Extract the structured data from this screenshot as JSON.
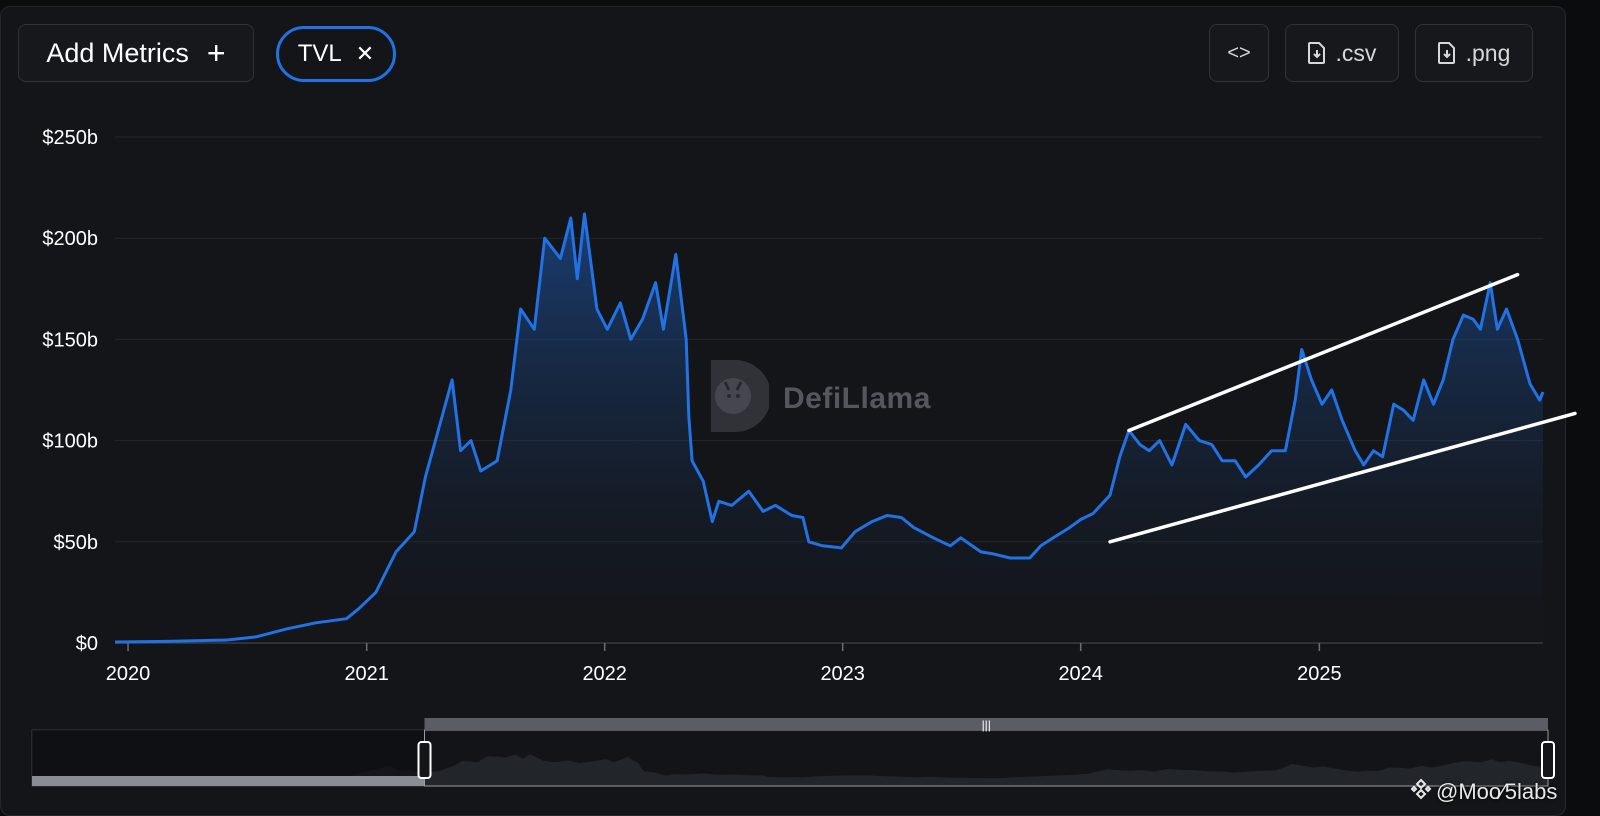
{
  "toolbar": {
    "add_metrics_label": "Add Metrics",
    "add_icon": "plus-icon",
    "metric_chip_label": "TVL",
    "remove_icon": "close-icon",
    "embed_label": "<>",
    "csv_label": ".csv",
    "png_label": ".png",
    "download_icon": "file-download-icon"
  },
  "watermark": {
    "text": "DefiLlama",
    "icon": "llama-logo-icon"
  },
  "credit": {
    "text": "@Moo⁄5labs",
    "icon": "binance-logo-icon"
  },
  "colors": {
    "line": "#2172e5",
    "background": "#141518",
    "trend_lines": "#ffffff",
    "brush_handle": "#ffffff"
  },
  "chart_data": {
    "type": "area",
    "title": "",
    "xlabel": "",
    "ylabel": "",
    "y_ticks": [
      "$0",
      "$50b",
      "$100b",
      "$150b",
      "$200b",
      "$250b"
    ],
    "x_ticks": [
      "2020",
      "2021",
      "2022",
      "2023",
      "2024",
      "2025"
    ],
    "ylim": [
      0,
      250
    ],
    "y_unit": "billion USD",
    "x_range": [
      "2019-12-12",
      "2025-12-10"
    ],
    "grid": "horizontal",
    "legend": "none",
    "series": [
      {
        "name": "TVL",
        "x": [
          "2019-12-12",
          "2020-03-01",
          "2020-06-01",
          "2020-07-15",
          "2020-09-01",
          "2020-10-15",
          "2020-12-01",
          "2020-12-20",
          "2021-01-15",
          "2021-02-15",
          "2021-03-15",
          "2021-04-01",
          "2021-04-25",
          "2021-05-12",
          "2021-05-25",
          "2021-06-10",
          "2021-06-25",
          "2021-07-20",
          "2021-08-10",
          "2021-08-25",
          "2021-09-15",
          "2021-10-01",
          "2021-10-25",
          "2021-11-10",
          "2021-11-20",
          "2021-12-01",
          "2021-12-20",
          "2022-01-05",
          "2022-01-25",
          "2022-02-10",
          "2022-02-28",
          "2022-03-20",
          "2022-04-01",
          "2022-04-20",
          "2022-05-06",
          "2022-05-10",
          "2022-05-15",
          "2022-06-01",
          "2022-06-15",
          "2022-06-25",
          "2022-07-15",
          "2022-08-10",
          "2022-09-01",
          "2022-09-20",
          "2022-10-15",
          "2022-11-01",
          "2022-11-10",
          "2022-12-01",
          "2022-12-30",
          "2023-01-20",
          "2023-02-15",
          "2023-03-10",
          "2023-04-01",
          "2023-04-20",
          "2023-05-20",
          "2023-06-15",
          "2023-07-01",
          "2023-08-01",
          "2023-08-20",
          "2023-09-15",
          "2023-10-15",
          "2023-11-01",
          "2023-11-20",
          "2023-12-15",
          "2024-01-01",
          "2024-01-20",
          "2024-02-15",
          "2024-03-01",
          "2024-03-15",
          "2024-04-01",
          "2024-04-15",
          "2024-05-01",
          "2024-05-20",
          "2024-06-10",
          "2024-07-01",
          "2024-07-20",
          "2024-08-05",
          "2024-08-25",
          "2024-09-10",
          "2024-09-30",
          "2024-10-20",
          "2024-11-10",
          "2024-11-25",
          "2024-12-05",
          "2024-12-20",
          "2025-01-05",
          "2025-01-20",
          "2025-02-05",
          "2025-02-25",
          "2025-03-10",
          "2025-03-25",
          "2025-04-08",
          "2025-04-25",
          "2025-05-10",
          "2025-05-25",
          "2025-06-10",
          "2025-06-25",
          "2025-07-10",
          "2025-07-25",
          "2025-08-10",
          "2025-08-25",
          "2025-09-05",
          "2025-09-20",
          "2025-10-01",
          "2025-10-15",
          "2025-11-01",
          "2025-11-20",
          "2025-12-05",
          "2025-12-10"
        ],
        "values": [
          0.5,
          0.8,
          1.5,
          3,
          7,
          10,
          12,
          17,
          25,
          45,
          55,
          82,
          110,
          130,
          95,
          100,
          85,
          90,
          125,
          165,
          155,
          200,
          190,
          210,
          180,
          212,
          165,
          155,
          168,
          150,
          160,
          178,
          155,
          192,
          150,
          112,
          90,
          80,
          60,
          70,
          68,
          75,
          65,
          68,
          63,
          62,
          50,
          48,
          47,
          55,
          60,
          63,
          62,
          57,
          52,
          48,
          52,
          45,
          44,
          42,
          42,
          48,
          52,
          57,
          61,
          64,
          73,
          92,
          105,
          98,
          95,
          100,
          88,
          108,
          100,
          98,
          90,
          90,
          82,
          88,
          95,
          95,
          120,
          145,
          130,
          118,
          125,
          110,
          95,
          88,
          95,
          92,
          118,
          115,
          110,
          130,
          118,
          130,
          150,
          162,
          160,
          155,
          178,
          155,
          165,
          150,
          128,
          120,
          124
        ]
      }
    ],
    "annotations": [
      {
        "type": "trend_line",
        "from": [
          "2024-03-15",
          105
        ],
        "to": [
          "2025-11-01",
          182
        ]
      },
      {
        "type": "trend_line",
        "from": [
          "2024-02-15",
          50
        ],
        "to": [
          "2026-02-15",
          115
        ]
      }
    ],
    "brush": {
      "start": "2021-07-01",
      "end": "2025-12-10"
    }
  }
}
